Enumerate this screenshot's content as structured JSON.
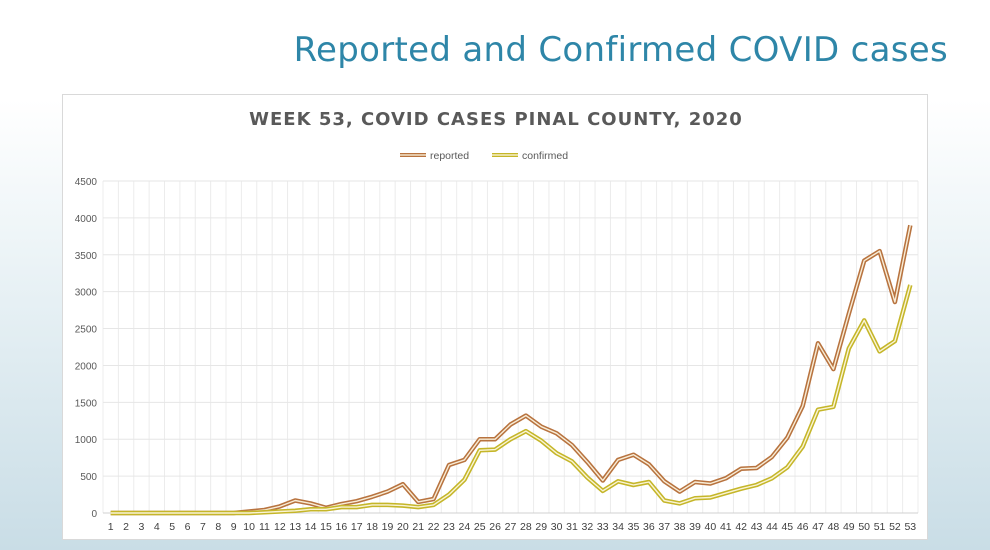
{
  "slide": {
    "title": "Reported and Confirmed COVID cases",
    "title_color": "#2e86a8"
  },
  "chart_data": {
    "type": "line",
    "title": "WEEK 53, COVID CASES PINAL COUNTY, 2020",
    "xlabel": "",
    "ylabel": "",
    "x": [
      1,
      2,
      3,
      4,
      5,
      6,
      7,
      8,
      9,
      10,
      11,
      12,
      13,
      14,
      15,
      16,
      17,
      18,
      19,
      20,
      21,
      22,
      23,
      24,
      25,
      26,
      27,
      28,
      29,
      30,
      31,
      32,
      33,
      34,
      35,
      36,
      37,
      38,
      39,
      40,
      41,
      42,
      43,
      44,
      45,
      46,
      47,
      48,
      49,
      50,
      51,
      52,
      53
    ],
    "ylim": [
      0,
      4500
    ],
    "yticks": [
      0,
      500,
      1000,
      1500,
      2000,
      2500,
      3000,
      3500,
      4000,
      4500
    ],
    "grid": true,
    "legend_position": "top",
    "series": [
      {
        "name": "reported",
        "color": "#d9874a",
        "values": [
          0,
          0,
          0,
          0,
          0,
          0,
          0,
          0,
          0,
          20,
          40,
          90,
          170,
          130,
          70,
          120,
          160,
          220,
          290,
          390,
          150,
          190,
          650,
          720,
          1000,
          1000,
          1200,
          1320,
          1170,
          1080,
          920,
          690,
          440,
          720,
          790,
          660,
          430,
          290,
          420,
          400,
          470,
          600,
          610,
          760,
          1020,
          1450,
          2300,
          1950,
          2700,
          3420,
          3550,
          2860,
          3900
        ]
      },
      {
        "name": "confirmed",
        "color": "#e8d630",
        "values": [
          0,
          0,
          0,
          0,
          0,
          0,
          0,
          0,
          0,
          0,
          10,
          20,
          30,
          50,
          50,
          80,
          80,
          110,
          110,
          100,
          80,
          110,
          250,
          450,
          850,
          860,
          1000,
          1110,
          980,
          810,
          700,
          480,
          300,
          430,
          380,
          420,
          170,
          130,
          200,
          210,
          270,
          330,
          380,
          470,
          620,
          900,
          1400,
          1440,
          2230,
          2610,
          2190,
          2330,
          3090
        ]
      }
    ]
  }
}
